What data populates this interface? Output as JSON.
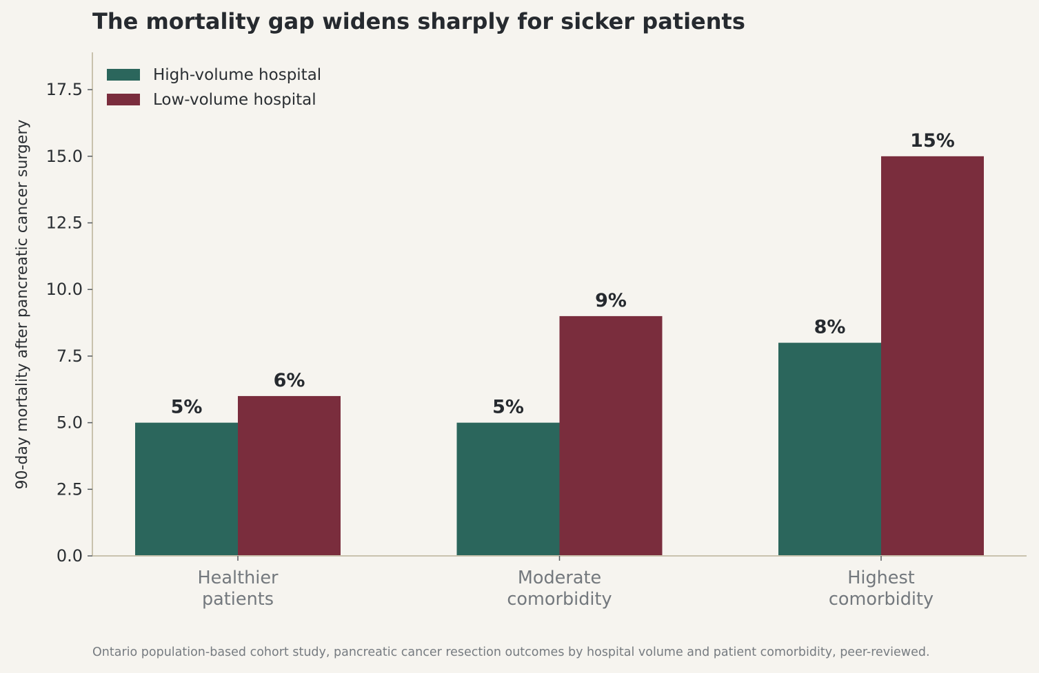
{
  "chart_data": {
    "type": "bar",
    "title": "The mortality gap widens sharply for sicker patients",
    "xlabel": "",
    "ylabel": "90-day mortality after pancreatic cancer surgery",
    "categories": [
      [
        "Healthier",
        "patients"
      ],
      [
        "Moderate",
        "comorbidity"
      ],
      [
        "Highest",
        "comorbidity"
      ]
    ],
    "series": [
      {
        "name": "High-volume hospital",
        "values": [
          5,
          5,
          8
        ],
        "labels": [
          "5%",
          "5%",
          "8%"
        ],
        "color": "#2b665c"
      },
      {
        "name": "Low-volume hospital",
        "values": [
          6,
          9,
          15
        ],
        "labels": [
          "6%",
          "9%",
          "15%"
        ],
        "color": "#7a2d3d"
      }
    ],
    "ylim": [
      0,
      18.9
    ],
    "yticks": [
      "0.0",
      "2.5",
      "5.0",
      "7.5",
      "10.0",
      "12.5",
      "15.0",
      "17.5"
    ],
    "ytick_values": [
      0,
      2.5,
      5,
      7.5,
      10,
      12.5,
      15,
      17.5
    ],
    "grid": false,
    "legend_position": "top-left",
    "source": "Ontario population-based cohort study, pancreatic cancer resection outcomes by hospital volume and patient comorbidity, peer-reviewed."
  }
}
